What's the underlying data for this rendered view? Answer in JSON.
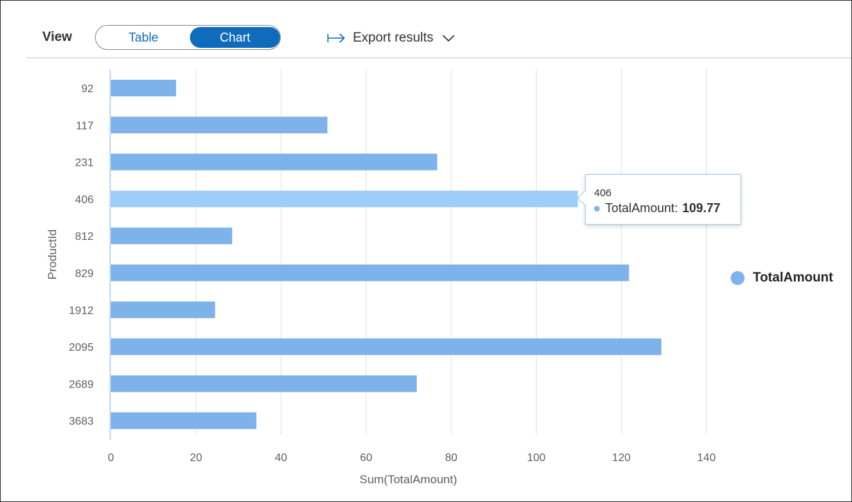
{
  "toolbar": {
    "view_label": "View",
    "toggle": {
      "options": [
        "Table",
        "Chart"
      ],
      "selected": "Chart"
    },
    "export_label": "Export results",
    "export_icon": "arrow-right-icon",
    "dropdown_icon": "chevron-down-icon"
  },
  "colors": {
    "bar": "#7db3ea",
    "bar_highlight": "#9dcdf8",
    "accent": "#0f6cbd",
    "grid": "#e1dfdd",
    "axis": "#a8c8ea"
  },
  "tooltip": {
    "title": "406",
    "series": "TotalAmount:",
    "value": "109.77"
  },
  "legend": {
    "label": "TotalAmount"
  },
  "chart_data": {
    "type": "bar",
    "orientation": "horizontal",
    "categories": [
      "92",
      "117",
      "231",
      "406",
      "812",
      "829",
      "1912",
      "2095",
      "2689",
      "3683"
    ],
    "series": [
      {
        "name": "TotalAmount",
        "values": [
          15.3,
          50.9,
          76.7,
          109.77,
          28.5,
          121.8,
          24.5,
          129.4,
          71.9,
          34.2
        ]
      }
    ],
    "highlighted_index": 3,
    "xlabel": "Sum(TotalAmount)",
    "ylabel": "ProductId",
    "xlim": [
      0,
      140
    ],
    "xticks": [
      0,
      20,
      40,
      60,
      80,
      100,
      120,
      140
    ],
    "grid": true,
    "legend_position": "right"
  }
}
